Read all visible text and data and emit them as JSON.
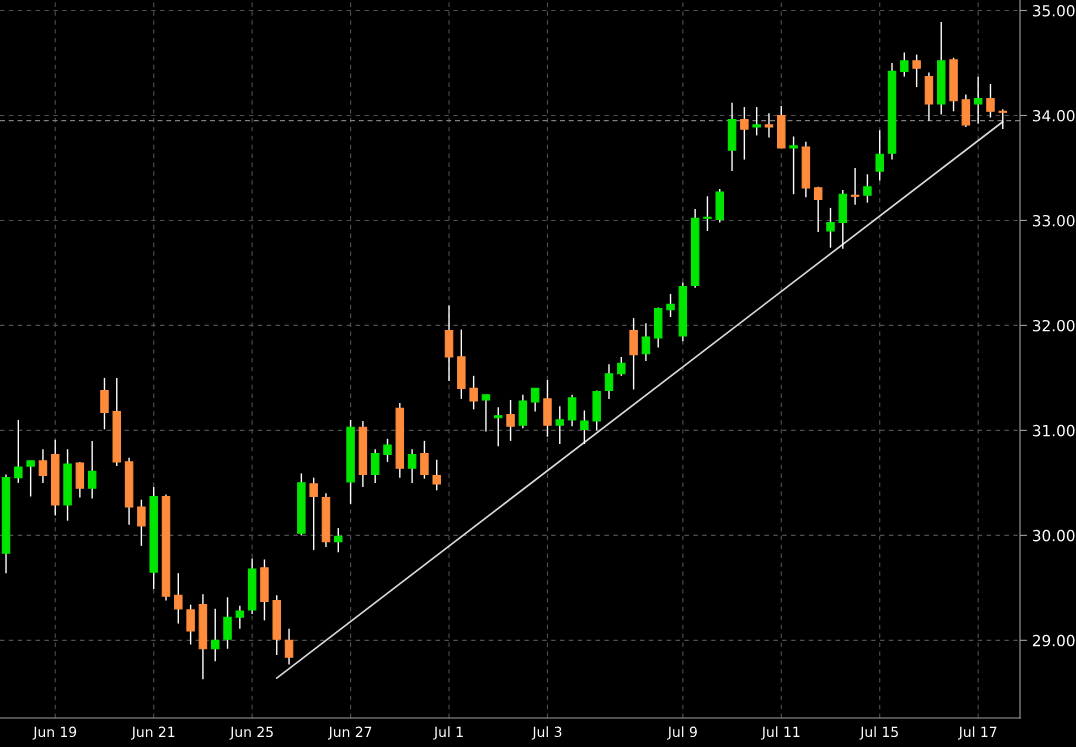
{
  "chart_data": {
    "type": "candlestick",
    "categories": [
      null,
      null,
      null,
      null,
      "Jun 19",
      null,
      null,
      null,
      null,
      null,
      null,
      null,
      "Jun 21",
      null,
      null,
      null,
      null,
      null,
      null,
      null,
      "Jun 25",
      null,
      null,
      null,
      null,
      null,
      null,
      null,
      "Jun 27",
      null,
      null,
      null,
      null,
      null,
      null,
      null,
      "Jul 1",
      null,
      null,
      null,
      null,
      null,
      null,
      null,
      "Jul 3",
      null,
      null,
      null,
      null,
      null,
      null,
      null,
      null,
      null,
      null,
      "Jul 9",
      null,
      null,
      null,
      null,
      null,
      null,
      null,
      "Jul 11",
      null,
      null,
      null,
      null,
      null,
      null,
      null,
      "Jul 15",
      null,
      null,
      null,
      null,
      null,
      null,
      null,
      "Jul 17",
      null,
      null
    ],
    "ohlc": [
      [
        29.83,
        30.58,
        29.64,
        30.55
      ],
      [
        30.55,
        31.1,
        30.5,
        30.65
      ],
      [
        30.66,
        30.71,
        30.37,
        30.71
      ],
      [
        30.71,
        30.82,
        30.5,
        30.57
      ],
      [
        30.77,
        30.91,
        30.19,
        30.29
      ],
      [
        30.29,
        30.82,
        30.14,
        30.68
      ],
      [
        30.69,
        30.7,
        30.36,
        30.45
      ],
      [
        30.45,
        30.9,
        30.35,
        30.61
      ],
      [
        31.38,
        31.5,
        31.01,
        31.17
      ],
      [
        31.18,
        31.5,
        30.66,
        30.7
      ],
      [
        30.7,
        30.74,
        30.1,
        30.27
      ],
      [
        30.27,
        30.34,
        29.9,
        30.09
      ],
      [
        29.65,
        30.46,
        29.49,
        30.37
      ],
      [
        30.37,
        30.39,
        29.38,
        29.42
      ],
      [
        29.43,
        29.64,
        29.16,
        29.3
      ],
      [
        29.29,
        29.34,
        28.96,
        29.09
      ],
      [
        29.34,
        29.44,
        28.63,
        28.92
      ],
      [
        28.92,
        29.3,
        28.8,
        29.0
      ],
      [
        29.01,
        29.41,
        28.92,
        29.22
      ],
      [
        29.22,
        29.33,
        29.11,
        29.28
      ],
      [
        29.29,
        29.78,
        29.25,
        29.68
      ],
      [
        29.69,
        29.77,
        29.19,
        29.37
      ],
      [
        29.38,
        29.43,
        28.86,
        29.01
      ],
      [
        29.0,
        29.11,
        28.77,
        28.84
      ],
      [
        30.02,
        30.59,
        30.0,
        30.5
      ],
      [
        30.49,
        30.55,
        29.86,
        30.37
      ],
      [
        30.36,
        30.4,
        29.89,
        29.94
      ],
      [
        29.94,
        30.07,
        29.84,
        29.99
      ],
      [
        30.51,
        31.1,
        30.3,
        31.03
      ],
      [
        31.03,
        31.09,
        30.46,
        30.58
      ],
      [
        30.58,
        30.82,
        30.5,
        30.78
      ],
      [
        30.77,
        30.92,
        30.7,
        30.86
      ],
      [
        31.21,
        31.26,
        30.55,
        30.64
      ],
      [
        30.64,
        30.82,
        30.5,
        30.77
      ],
      [
        30.78,
        30.9,
        30.54,
        30.58
      ],
      [
        30.57,
        30.72,
        30.43,
        30.49
      ],
      [
        31.95,
        32.19,
        31.47,
        31.7
      ],
      [
        31.7,
        31.96,
        31.3,
        31.4
      ],
      [
        31.4,
        31.52,
        31.2,
        31.28
      ],
      [
        31.29,
        31.34,
        30.99,
        31.34
      ],
      [
        31.12,
        31.22,
        30.85,
        31.14
      ],
      [
        31.15,
        31.29,
        30.9,
        31.04
      ],
      [
        31.05,
        31.34,
        31.02,
        31.28
      ],
      [
        31.27,
        31.4,
        31.18,
        31.4
      ],
      [
        31.3,
        31.48,
        30.94,
        31.05
      ],
      [
        31.05,
        31.23,
        30.87,
        31.1
      ],
      [
        31.1,
        31.34,
        31.04,
        31.31
      ],
      [
        31.01,
        31.19,
        30.87,
        31.09
      ],
      [
        31.09,
        31.38,
        31.0,
        31.37
      ],
      [
        31.38,
        31.63,
        31.3,
        31.54
      ],
      [
        31.54,
        31.7,
        31.52,
        31.64
      ],
      [
        31.95,
        32.07,
        31.39,
        31.72
      ],
      [
        31.73,
        32.02,
        31.66,
        31.89
      ],
      [
        31.88,
        32.17,
        31.79,
        32.16
      ],
      [
        32.15,
        32.3,
        32.08,
        32.2
      ],
      [
        31.9,
        32.41,
        31.85,
        32.37
      ],
      [
        32.38,
        33.11,
        32.36,
        33.02
      ],
      [
        33.02,
        33.23,
        32.9,
        33.03
      ],
      [
        33.01,
        33.3,
        32.98,
        33.27
      ],
      [
        33.67,
        34.12,
        33.47,
        33.96
      ],
      [
        33.96,
        34.08,
        33.58,
        33.87
      ],
      [
        33.89,
        34.08,
        33.81,
        33.91
      ],
      [
        33.91,
        34.02,
        33.79,
        33.89
      ],
      [
        34.0,
        34.09,
        33.69,
        33.69
      ],
      [
        33.69,
        33.8,
        33.25,
        33.71
      ],
      [
        33.7,
        33.75,
        33.22,
        33.31
      ],
      [
        33.31,
        33.32,
        32.89,
        33.2
      ],
      [
        32.9,
        33.12,
        32.74,
        32.98
      ],
      [
        32.98,
        33.29,
        32.73,
        33.25
      ],
      [
        33.24,
        33.5,
        33.15,
        33.23
      ],
      [
        33.24,
        33.44,
        33.17,
        33.32
      ],
      [
        33.47,
        33.86,
        33.38,
        33.63
      ],
      [
        33.64,
        34.5,
        33.58,
        34.42
      ],
      [
        34.42,
        34.6,
        34.37,
        34.52
      ],
      [
        34.52,
        34.58,
        34.27,
        34.45
      ],
      [
        34.37,
        34.41,
        33.95,
        34.11
      ],
      [
        34.11,
        34.89,
        34.01,
        34.52
      ],
      [
        34.53,
        34.55,
        34.04,
        34.14
      ],
      [
        34.15,
        34.2,
        33.89,
        33.91
      ],
      [
        34.11,
        34.37,
        33.92,
        34.16
      ],
      [
        34.16,
        34.3,
        33.98,
        34.04
      ],
      [
        34.04,
        34.06,
        33.87,
        34.03
      ]
    ],
    "colors": [
      "#00e600",
      "#00e600",
      "#00e600",
      "#ff8c3c",
      "#ff8c3c",
      "#00e600",
      "#ff8c3c",
      "#00e600",
      "#ff8c3c",
      "#ff8c3c",
      "#ff8c3c",
      "#ff8c3c",
      "#00e600",
      "#ff8c3c",
      "#ff8c3c",
      "#ff8c3c",
      "#ff8c3c",
      "#00e600",
      "#00e600",
      "#00e600",
      "#00e600",
      "#ff8c3c",
      "#ff8c3c",
      "#ff8c3c",
      "#00e600",
      "#ff8c3c",
      "#ff8c3c",
      "#00e600",
      "#00e600",
      "#ff8c3c",
      "#00e600",
      "#00e600",
      "#ff8c3c",
      "#00e600",
      "#ff8c3c",
      "#ff8c3c",
      "#ff8c3c",
      "#ff8c3c",
      "#ff8c3c",
      "#00e600",
      "#00e600",
      "#ff8c3c",
      "#00e600",
      "#00e600",
      "#ff8c3c",
      "#00e600",
      "#00e600",
      "#00e600",
      "#00e600",
      "#00e600",
      "#00e600",
      "#ff8c3c",
      "#00e600",
      "#00e600",
      "#00e600",
      "#00e600",
      "#00e600",
      "#00e600",
      "#00e600",
      "#00e600",
      "#ff8c3c",
      "#00e600",
      "#ff8c3c",
      "#ff8c3c",
      "#00e600",
      "#ff8c3c",
      "#ff8c3c",
      "#00e600",
      "#00e600",
      "#ff8c3c",
      "#00e600",
      "#00e600",
      "#00e600",
      "#00e600",
      "#ff8c3c",
      "#ff8c3c",
      "#00e600",
      "#ff8c3c",
      "#ff8c3c",
      "#00e600",
      "#ff8c3c",
      "#ff8c3c"
    ],
    "series": [
      {
        "type": "line",
        "color": "#d9d9d9",
        "values": [
          null,
          null,
          null,
          null,
          null,
          null,
          null,
          null,
          null,
          null,
          null,
          null,
          null,
          null,
          null,
          null,
          null,
          null,
          null,
          null,
          null,
          null,
          28.64,
          null,
          null,
          null,
          null,
          null,
          null,
          null,
          null,
          null,
          null,
          null,
          null,
          null,
          null,
          null,
          null,
          null,
          null,
          null,
          null,
          null,
          null,
          null,
          null,
          null,
          null,
          null,
          null,
          null,
          null,
          null,
          null,
          null,
          null,
          null,
          null,
          null,
          null,
          null,
          null,
          null,
          null,
          null,
          null,
          null,
          null,
          null,
          null,
          null,
          null,
          null,
          null,
          null,
          null,
          null,
          null,
          null,
          null,
          33.94
        ]
      }
    ],
    "ylim": [
      28.26,
      35.1
    ],
    "yticks": [
      {
        "value": 29,
        "label": "29.00"
      },
      {
        "value": 30,
        "label": "30.00"
      },
      {
        "value": 31,
        "label": "31.00"
      },
      {
        "value": 32,
        "label": "32.00"
      },
      {
        "value": 33,
        "label": "33.00"
      },
      {
        "value": 34,
        "label": "34.00"
      },
      {
        "value": 35,
        "label": "35.00"
      }
    ],
    "ref_lines": [
      {
        "axis": "y",
        "value": 33.95,
        "color": "#808080",
        "line_style": "dashed"
      }
    ],
    "grid": true
  }
}
